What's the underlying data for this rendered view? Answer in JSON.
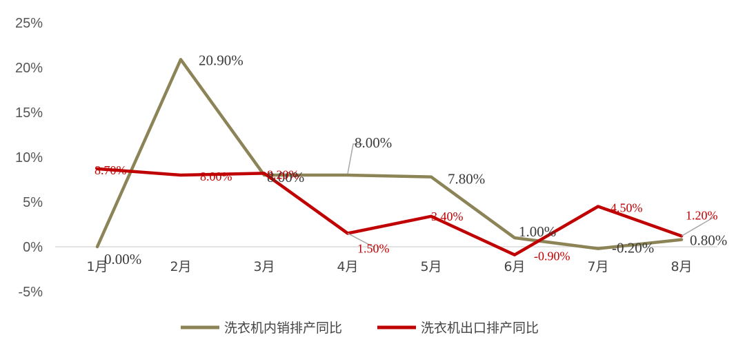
{
  "chart_data": {
    "type": "line",
    "categories": [
      "1月",
      "2月",
      "3月",
      "4月",
      "5月",
      "6月",
      "7月",
      "8月"
    ],
    "ylim": [
      -5,
      25
    ],
    "yticks": [
      25,
      20,
      15,
      10,
      5,
      0,
      -5
    ],
    "ytick_labels": [
      "25%",
      "20%",
      "15%",
      "10%",
      "5%",
      "0%",
      "-5%"
    ],
    "grid": false,
    "legend_position": "bottom",
    "series": [
      {
        "name": "洗衣机内销排产同比",
        "color": "#8c8456",
        "values": [
          0.0,
          20.9,
          8.0,
          8.0,
          7.8,
          1.0,
          -0.2,
          0.8
        ],
        "labels": [
          "0.00%",
          "20.90%",
          "8.00%",
          "8.00%",
          "7.80%",
          "1.00%",
          "-0.20%",
          "0.80%"
        ]
      },
      {
        "name": "洗衣机出口排产同比",
        "color": "#c00000",
        "values": [
          8.7,
          8.0,
          8.2,
          1.5,
          3.4,
          -0.9,
          4.5,
          1.2
        ],
        "labels": [
          "8.70%",
          "8.00%",
          "8.20%",
          "1.50%",
          "3.40%",
          "-0.90%",
          "4.50%",
          "1.20%"
        ]
      }
    ]
  }
}
